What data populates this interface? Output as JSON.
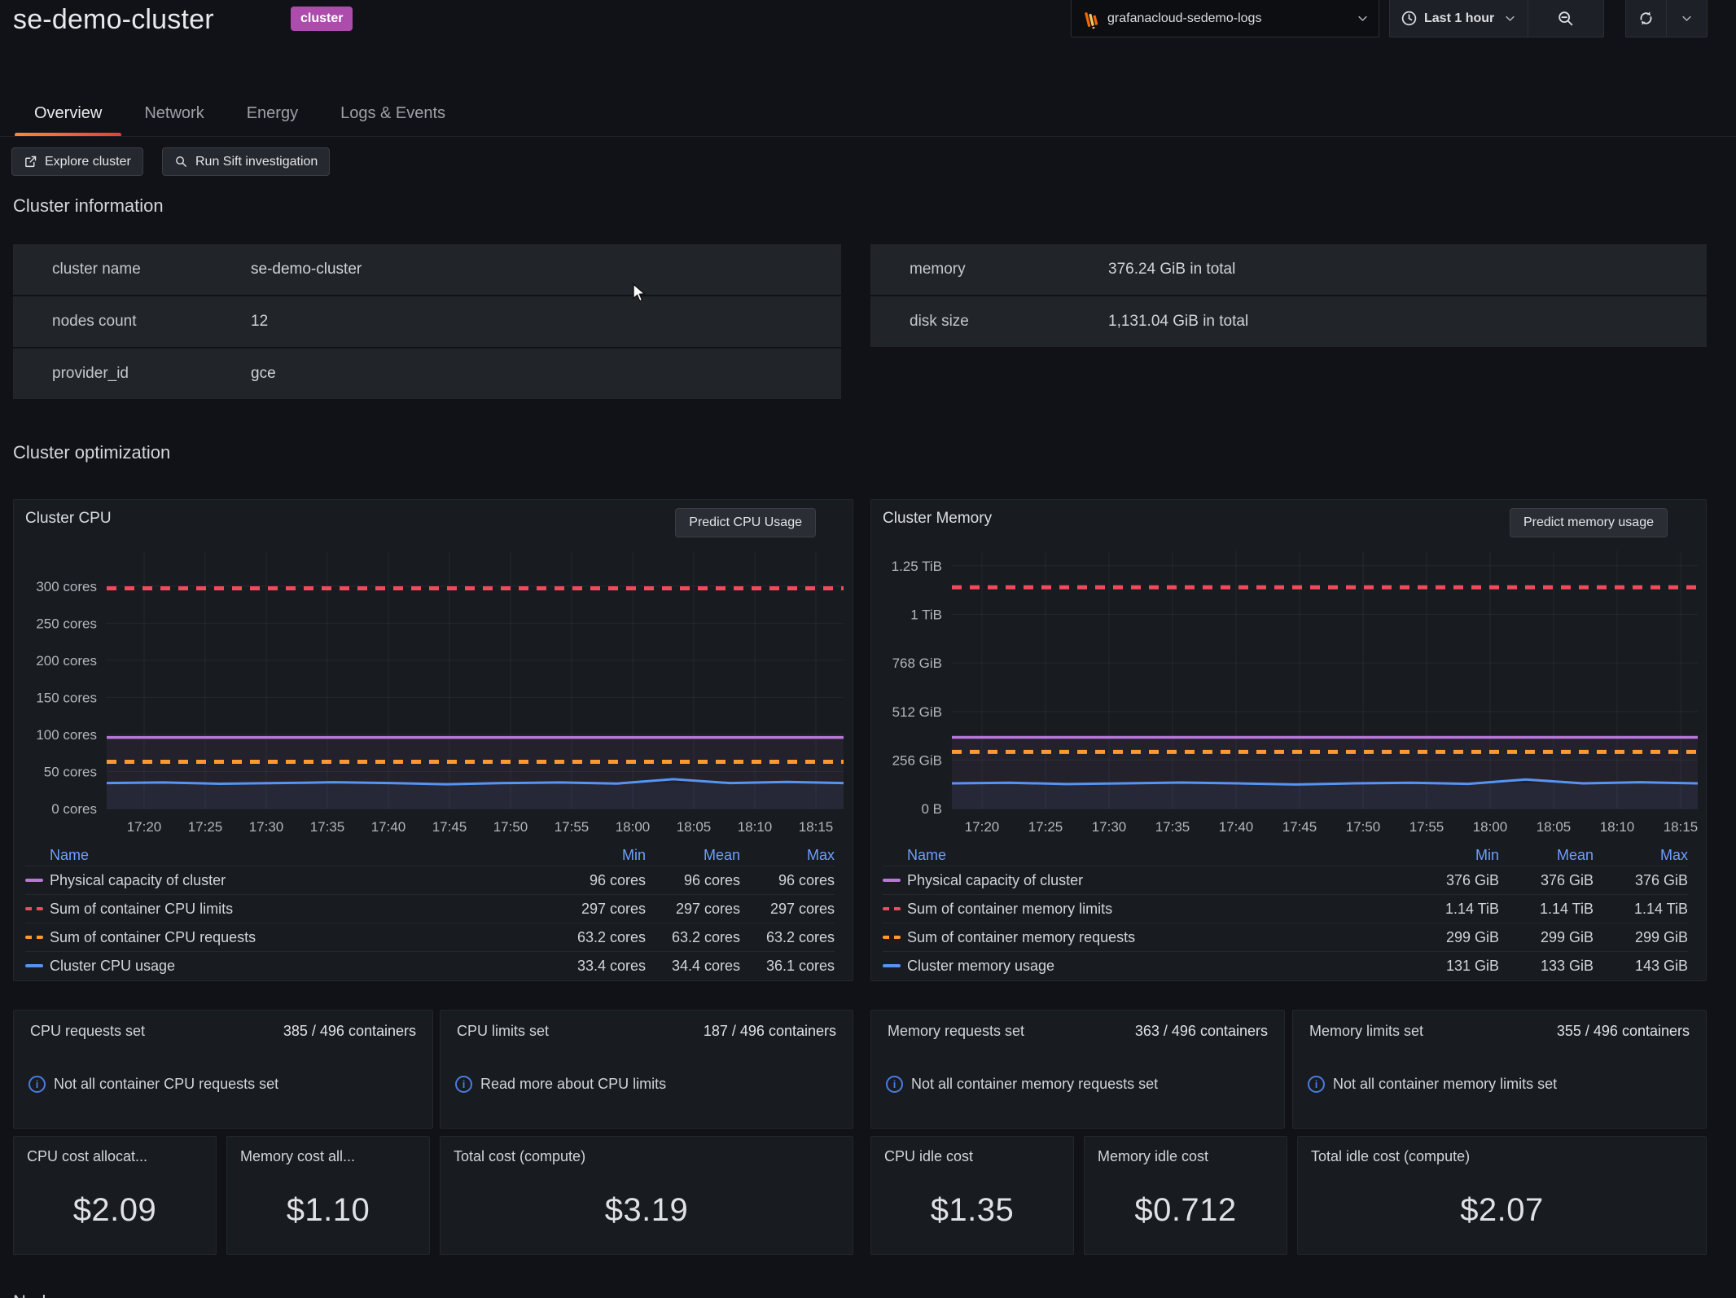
{
  "header": {
    "title": "se-demo-cluster",
    "badge": "cluster",
    "datasource_picker": {
      "value": "grafanacloud-sedemo-logs",
      "icon": "loki-logo"
    },
    "time_range": "Last 1 hour",
    "tabs": [
      {
        "label": "Overview",
        "active": true
      },
      {
        "label": "Network",
        "active": false
      },
      {
        "label": "Energy",
        "active": false
      },
      {
        "label": "Logs & Events",
        "active": false
      }
    ]
  },
  "toolbar": {
    "explore_label": "Explore cluster",
    "sift_label": "Run Sift investigation"
  },
  "sections": {
    "cluster_information": "Cluster information",
    "cluster_optimization": "Cluster optimization",
    "next_partial": "Nodes"
  },
  "cluster_info": {
    "left": [
      {
        "label": "cluster name",
        "value": "se-demo-cluster"
      },
      {
        "label": "nodes count",
        "value": "12"
      },
      {
        "label": "provider_id",
        "value": "gce"
      }
    ],
    "right": [
      {
        "label": "memory",
        "value": "376.24 GiB in total"
      },
      {
        "label": "disk size",
        "value": "1,131.04 GiB in total"
      }
    ]
  },
  "chart_data": [
    {
      "type": "line",
      "title": "Cluster CPU",
      "action_button": "Predict CPU Usage",
      "value_unit": "cores",
      "x": [
        "17:20",
        "17:25",
        "17:30",
        "17:35",
        "17:40",
        "17:45",
        "17:50",
        "17:55",
        "18:00",
        "18:05",
        "18:10",
        "18:15"
      ],
      "ylim": [
        0,
        347
      ],
      "grid": true,
      "legend_position": "bottom",
      "yticks": [
        {
          "value": 300,
          "label": "300 cores"
        },
        {
          "value": 250,
          "label": "250 cores"
        },
        {
          "value": 200,
          "label": "200 cores"
        },
        {
          "value": 150,
          "label": "150 cores"
        },
        {
          "value": 100,
          "label": "100 cores"
        },
        {
          "value": 50,
          "label": "50 cores"
        },
        {
          "value": 0,
          "label": "0 cores"
        }
      ],
      "legend_columns": [
        "Name",
        "Min",
        "Mean",
        "Max"
      ],
      "series": [
        {
          "name": "Physical capacity of cluster",
          "color": "#b877d9",
          "line_style": "solid",
          "value": 96,
          "fill": true,
          "min": "96 cores",
          "mean": "96 cores",
          "max": "96 cores"
        },
        {
          "name": "Sum of container CPU limits",
          "color": "#f2495c",
          "line_style": "dashed",
          "value": 297,
          "fill": false,
          "min": "297 cores",
          "mean": "297 cores",
          "max": "297 cores"
        },
        {
          "name": "Sum of container CPU requests",
          "color": "#ff9830",
          "line_style": "dashed",
          "value": 63.2,
          "fill": false,
          "min": "63.2 cores",
          "mean": "63.2 cores",
          "max": "63.2 cores"
        },
        {
          "name": "Cluster CPU usage",
          "color": "#5794f2",
          "line_style": "solid",
          "value": 34.4,
          "fill": true,
          "wiggle": true,
          "min": "33.4 cores",
          "mean": "34.4 cores",
          "max": "36.1 cores"
        }
      ]
    },
    {
      "type": "line",
      "title": "Cluster Memory",
      "action_button": "Predict memory usage",
      "value_unit": "GiB",
      "x": [
        "17:20",
        "17:25",
        "17:30",
        "17:35",
        "17:40",
        "17:45",
        "17:50",
        "17:55",
        "18:00",
        "18:05",
        "18:10",
        "18:15"
      ],
      "ylim": [
        0,
        1357
      ],
      "grid": true,
      "legend_position": "bottom",
      "yticks": [
        {
          "value": 1280,
          "label": "1.25 TiB"
        },
        {
          "value": 1024,
          "label": "1 TiB"
        },
        {
          "value": 768,
          "label": "768 GiB"
        },
        {
          "value": 512,
          "label": "512 GiB"
        },
        {
          "value": 256,
          "label": "256 GiB"
        },
        {
          "value": 0,
          "label": "0 B"
        }
      ],
      "legend_columns": [
        "Name",
        "Min",
        "Mean",
        "Max"
      ],
      "series": [
        {
          "name": "Physical capacity of cluster",
          "color": "#b877d9",
          "line_style": "solid",
          "value": 376,
          "fill": true,
          "min": "376 GiB",
          "mean": "376 GiB",
          "max": "376 GiB"
        },
        {
          "name": "Sum of container memory limits",
          "color": "#f2495c",
          "line_style": "dashed",
          "value": 1167,
          "fill": false,
          "min": "1.14 TiB",
          "mean": "1.14 TiB",
          "max": "1.14 TiB"
        },
        {
          "name": "Sum of container memory requests",
          "color": "#ff9830",
          "line_style": "dashed",
          "value": 299,
          "fill": false,
          "min": "299 GiB",
          "mean": "299 GiB",
          "max": "299 GiB"
        },
        {
          "name": "Cluster memory usage",
          "color": "#5794f2",
          "line_style": "solid",
          "value": 133,
          "fill": true,
          "wiggle": true,
          "min": "131 GiB",
          "mean": "133 GiB",
          "max": "143 GiB"
        }
      ]
    }
  ],
  "stat_cards": [
    {
      "title": "CPU requests set",
      "value": "385 / 496 containers",
      "note": "Not all container CPU requests set"
    },
    {
      "title": "CPU limits set",
      "value": "187 / 496 containers",
      "note": "Read more about CPU limits"
    },
    {
      "title": "Memory requests set",
      "value": "363 / 496 containers",
      "note": "Not all container memory requests set"
    },
    {
      "title": "Memory limits set",
      "value": "355 / 496 containers",
      "note": "Not all container memory limits set"
    }
  ],
  "cost_cards": [
    {
      "title": "CPU cost allocat...",
      "value": "$2.09"
    },
    {
      "title": "Memory cost all...",
      "value": "$1.10"
    },
    {
      "title": "Total cost (compute)",
      "value": "$3.19"
    },
    {
      "title": "CPU idle cost",
      "value": "$1.35"
    },
    {
      "title": "Memory idle cost",
      "value": "$0.712"
    },
    {
      "title": "Total idle cost (compute)",
      "value": "$2.07"
    }
  ],
  "colors": {
    "accent_orange": "#ff8833",
    "badge_purple": "#ad4cad",
    "series_purple": "#b877d9",
    "series_red": "#f2495c",
    "series_orange": "#ff9830",
    "series_blue": "#5794f2",
    "legend_header_blue": "#6e9fff",
    "info_blue": "#4a7de0"
  }
}
